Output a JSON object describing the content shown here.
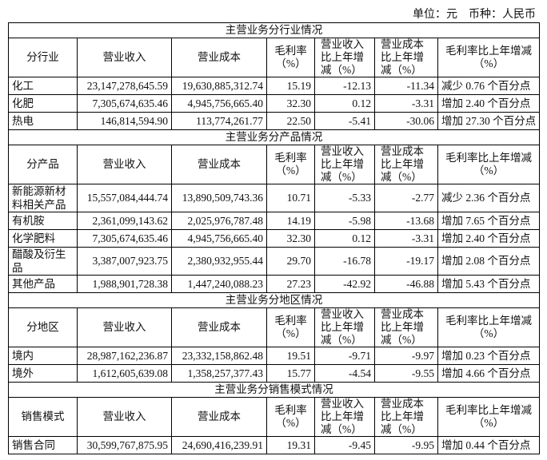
{
  "unit_label": "单位：元　币种：人民币",
  "headers": {
    "revenue": "营业收入",
    "cost": "营业成本",
    "margin": "毛利率（%）",
    "rev_change": "营业收入比上年增减（%）",
    "cost_change": "营业成本比上年增减（%）",
    "margin_change": "毛利率比上年增减（%）"
  },
  "sections": [
    {
      "title": "主营业务分行业情况",
      "dim": "分行业",
      "rows": [
        [
          "化工",
          "23,147,278,645.59",
          "19,630,885,312.74",
          "15.19",
          "-12.13",
          "-11.34",
          "减少 0.76 个百分点"
        ],
        [
          "化肥",
          "7,305,674,635.46",
          "4,945,756,665.40",
          "32.30",
          "0.12",
          "-3.31",
          "增加 2.40 个百分点"
        ],
        [
          "热电",
          "146,814,594.90",
          "113,774,261.77",
          "22.50",
          "-5.41",
          "-30.06",
          "增加 27.30 个百分点"
        ]
      ]
    },
    {
      "title": "主营业务分产品情况",
      "dim": "分产品",
      "rows": [
        [
          "新能源新材料相关产品",
          "15,557,084,444.74",
          "13,890,509,743.36",
          "10.71",
          "-5.33",
          "-2.77",
          "减少 2.36 个百分点"
        ],
        [
          "有机胺",
          "2,361,099,143.62",
          "2,025,976,787.48",
          "14.19",
          "-5.98",
          "-13.68",
          "增加 7.65 个百分点"
        ],
        [
          "化学肥料",
          "7,305,674,635.46",
          "4,945,756,665.40",
          "32.30",
          "0.12",
          "-3.31",
          "增加 2.40 个百分点"
        ],
        [
          "醋酸及衍生品",
          "3,387,007,923.75",
          "2,380,932,955.44",
          "29.70",
          "-16.78",
          "-19.17",
          "增加 2.08 个百分点"
        ],
        [
          "其他产品",
          "1,988,901,728.38",
          "1,447,240,088.23",
          "27.23",
          "-42.92",
          "-46.88",
          "增加 5.43 个百分点"
        ]
      ]
    },
    {
      "title": "主营业务分地区情况",
      "dim": "分地区",
      "rows": [
        [
          "境内",
          "28,987,162,236.87",
          "23,332,158,862.48",
          "19.51",
          "-9.71",
          "-9.97",
          "增加 0.23 个百分点"
        ],
        [
          "境外",
          "1,612,605,639.08",
          "1,358,257,377.43",
          "15.77",
          "-4.54",
          "-9.55",
          "增加 4.66 个百分点"
        ]
      ]
    },
    {
      "title": "主营业务分销售模式情况",
      "dim": "销售模式",
      "rows": [
        [
          "销售合同",
          "30,599,767,875.95",
          "24,690,416,239.91",
          "19.31",
          "-9.45",
          "-9.95",
          "增加 0.44 个百分点"
        ]
      ]
    }
  ]
}
